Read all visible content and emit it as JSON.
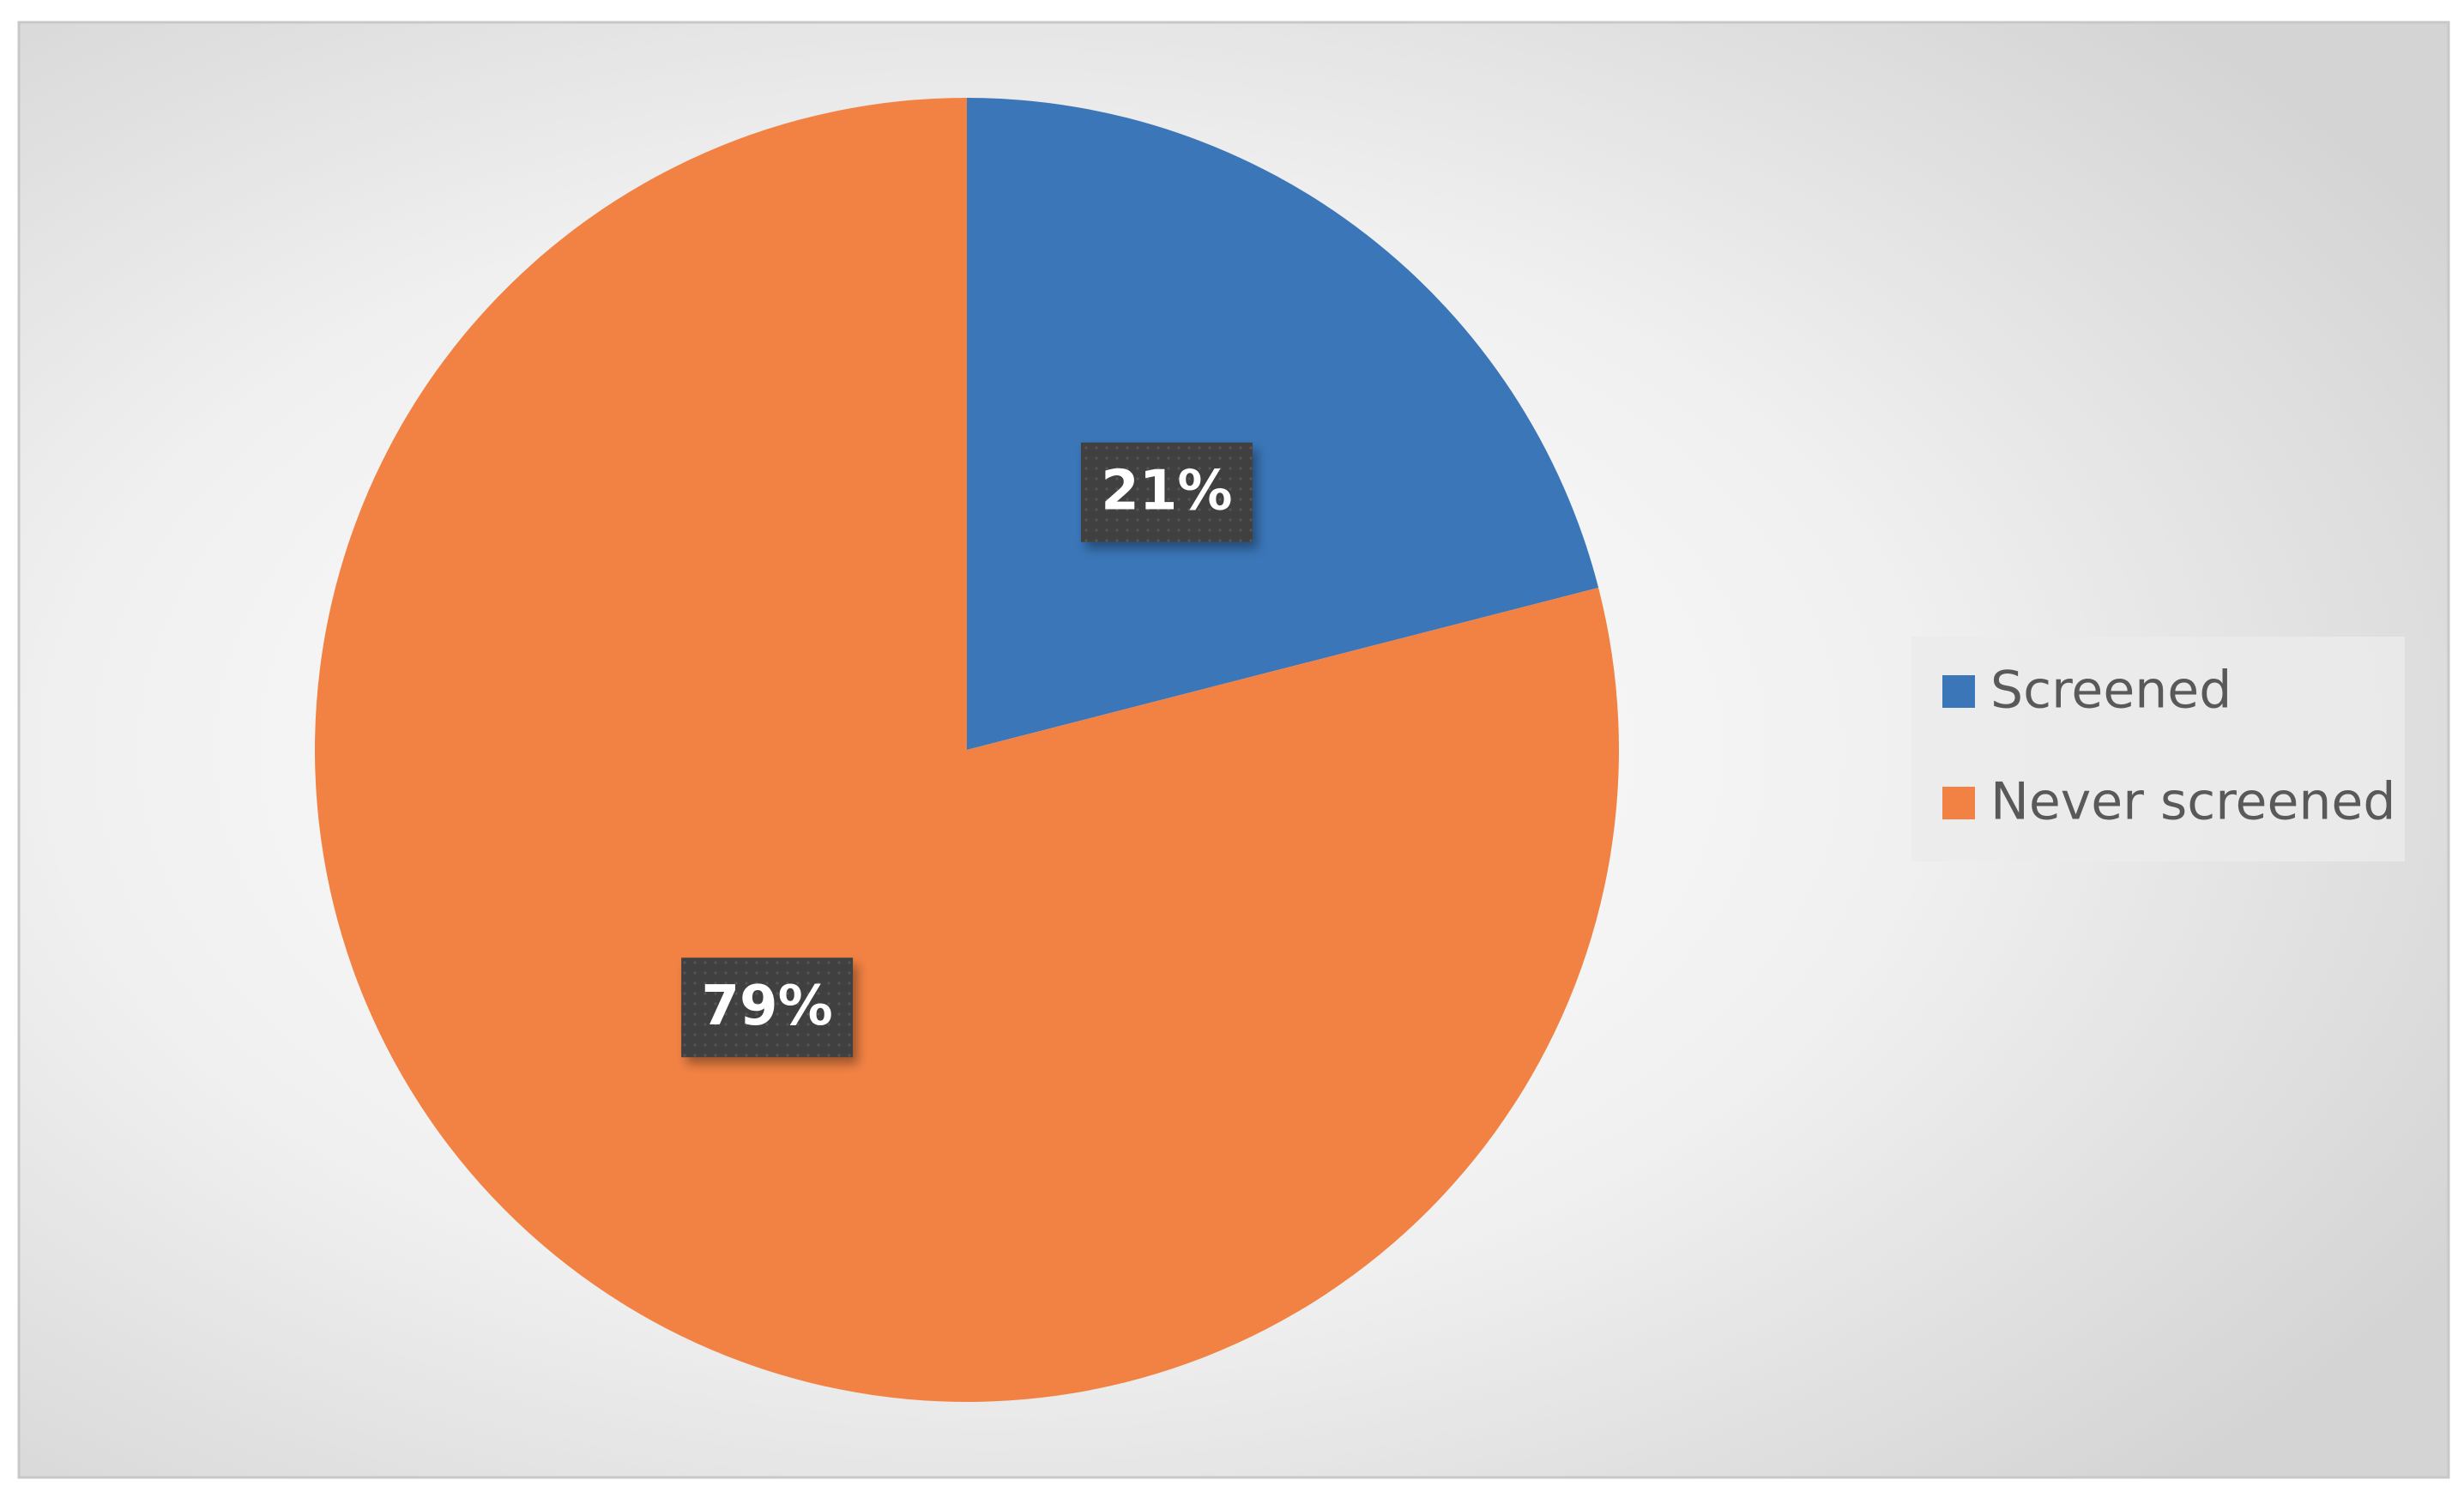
{
  "chart_data": {
    "type": "pie",
    "categories": [
      "Screened",
      "Never screened"
    ],
    "values": [
      21,
      79
    ],
    "value_labels": [
      "21%",
      "79%"
    ],
    "colors": [
      "#3a76b8",
      "#f28244"
    ],
    "legend": "right"
  }
}
